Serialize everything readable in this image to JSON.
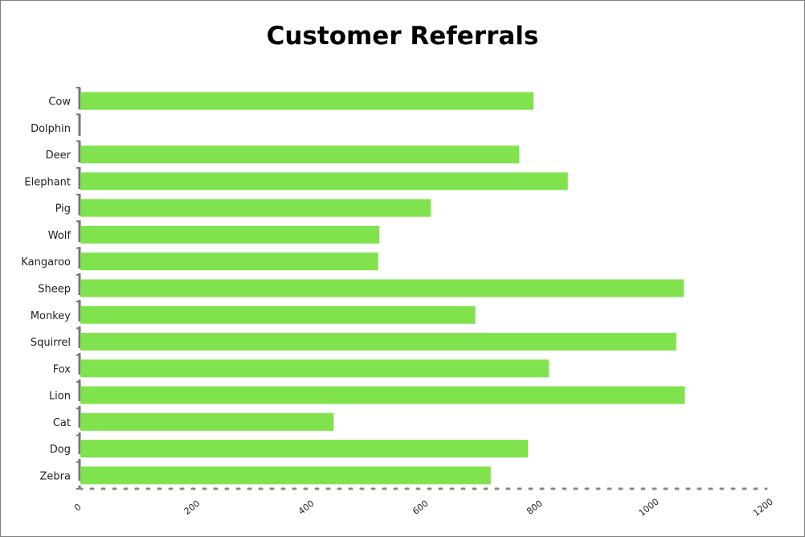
{
  "chart_data": {
    "type": "bar",
    "orientation": "horizontal",
    "title": "Customer Referrals",
    "xlabel": "",
    "ylabel": "",
    "categories": [
      "Cow",
      "Dolphin",
      "Deer",
      "Elephant",
      "Pig",
      "Wolf",
      "Kangaroo",
      "Sheep",
      "Monkey",
      "Squirrel",
      "Fox",
      "Lion",
      "Cat",
      "Dog",
      "Zebra"
    ],
    "values": [
      795,
      0,
      770,
      855,
      615,
      525,
      523,
      1058,
      693,
      1045,
      822,
      1060,
      445,
      785,
      720
    ],
    "xlim": [
      0,
      1200
    ],
    "xticks": [
      "0",
      "200",
      "400",
      "600",
      "800",
      "1000",
      "1200"
    ],
    "bar_color": "#80e34d",
    "grid": false,
    "legend": "none"
  }
}
